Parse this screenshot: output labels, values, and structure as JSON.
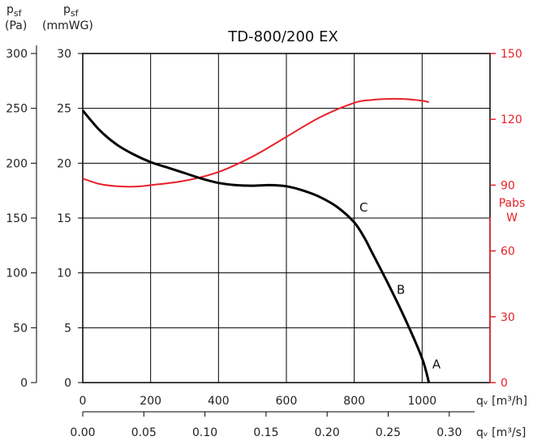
{
  "chart_data": {
    "type": "line",
    "title": "TD-800/200 EX",
    "grid": true,
    "colors": {
      "pressure": "#000000",
      "power": "#e8212a",
      "grid": "#000000"
    },
    "y_left_pa": {
      "label_main": "p",
      "label_sub": "sf",
      "unit": "(Pa)",
      "range": [
        0,
        300
      ],
      "ticks": [
        "0",
        "50",
        "100",
        "150",
        "200",
        "250",
        "300"
      ]
    },
    "y_left_mmwg": {
      "label_main": "p",
      "label_sub": "sf",
      "unit": "(mmWG)",
      "range": [
        0,
        30
      ],
      "ticks": [
        "0",
        "5",
        "10",
        "15",
        "20",
        "25",
        "30"
      ]
    },
    "y_right_power": {
      "label": "Pabs",
      "unit": "W",
      "range": [
        0,
        150
      ],
      "ticks": [
        "0",
        "30",
        "60",
        "90",
        "120",
        "150"
      ]
    },
    "x_m3h": {
      "label": "qᵥ [m³/h]",
      "range": [
        0,
        1200
      ],
      "ticks": [
        "0",
        "200",
        "400",
        "600",
        "800",
        "1000"
      ]
    },
    "x_m3s": {
      "label": "qᵥ [m³/s]",
      "ticks": [
        "0.00",
        "0.05",
        "0.10",
        "0.15",
        "0.20",
        "0.25",
        "0.30"
      ]
    },
    "series": [
      {
        "axis": "pressure_mmwg",
        "x": [
          0,
          50,
          100,
          150,
          200,
          250,
          300,
          350,
          400,
          450,
          500,
          550,
          600,
          650,
          700,
          750,
          800,
          830,
          850,
          900,
          950,
          1000,
          1020
        ],
        "y": [
          24.8,
          23.0,
          21.7,
          20.8,
          20.1,
          19.6,
          19.1,
          18.6,
          18.2,
          18.0,
          17.95,
          18.0,
          17.9,
          17.5,
          16.9,
          16.0,
          14.6,
          13.2,
          12.0,
          9.0,
          5.8,
          2.2,
          0.0
        ]
      },
      {
        "axis": "power_w",
        "x": [
          0,
          50,
          100,
          150,
          200,
          300,
          400,
          500,
          600,
          700,
          800,
          850,
          900,
          950,
          1000,
          1020
        ],
        "y": [
          93,
          90.5,
          89.5,
          89.3,
          90,
          92,
          96,
          103,
          112,
          121,
          127.5,
          128.8,
          129.3,
          129.2,
          128.5,
          127.8
        ]
      }
    ],
    "points": [
      {
        "label": "A",
        "x": 1030,
        "y": 1.3
      },
      {
        "label": "B",
        "x": 925,
        "y": 8.1
      },
      {
        "label": "C",
        "x": 815,
        "y": 15.6
      }
    ]
  }
}
